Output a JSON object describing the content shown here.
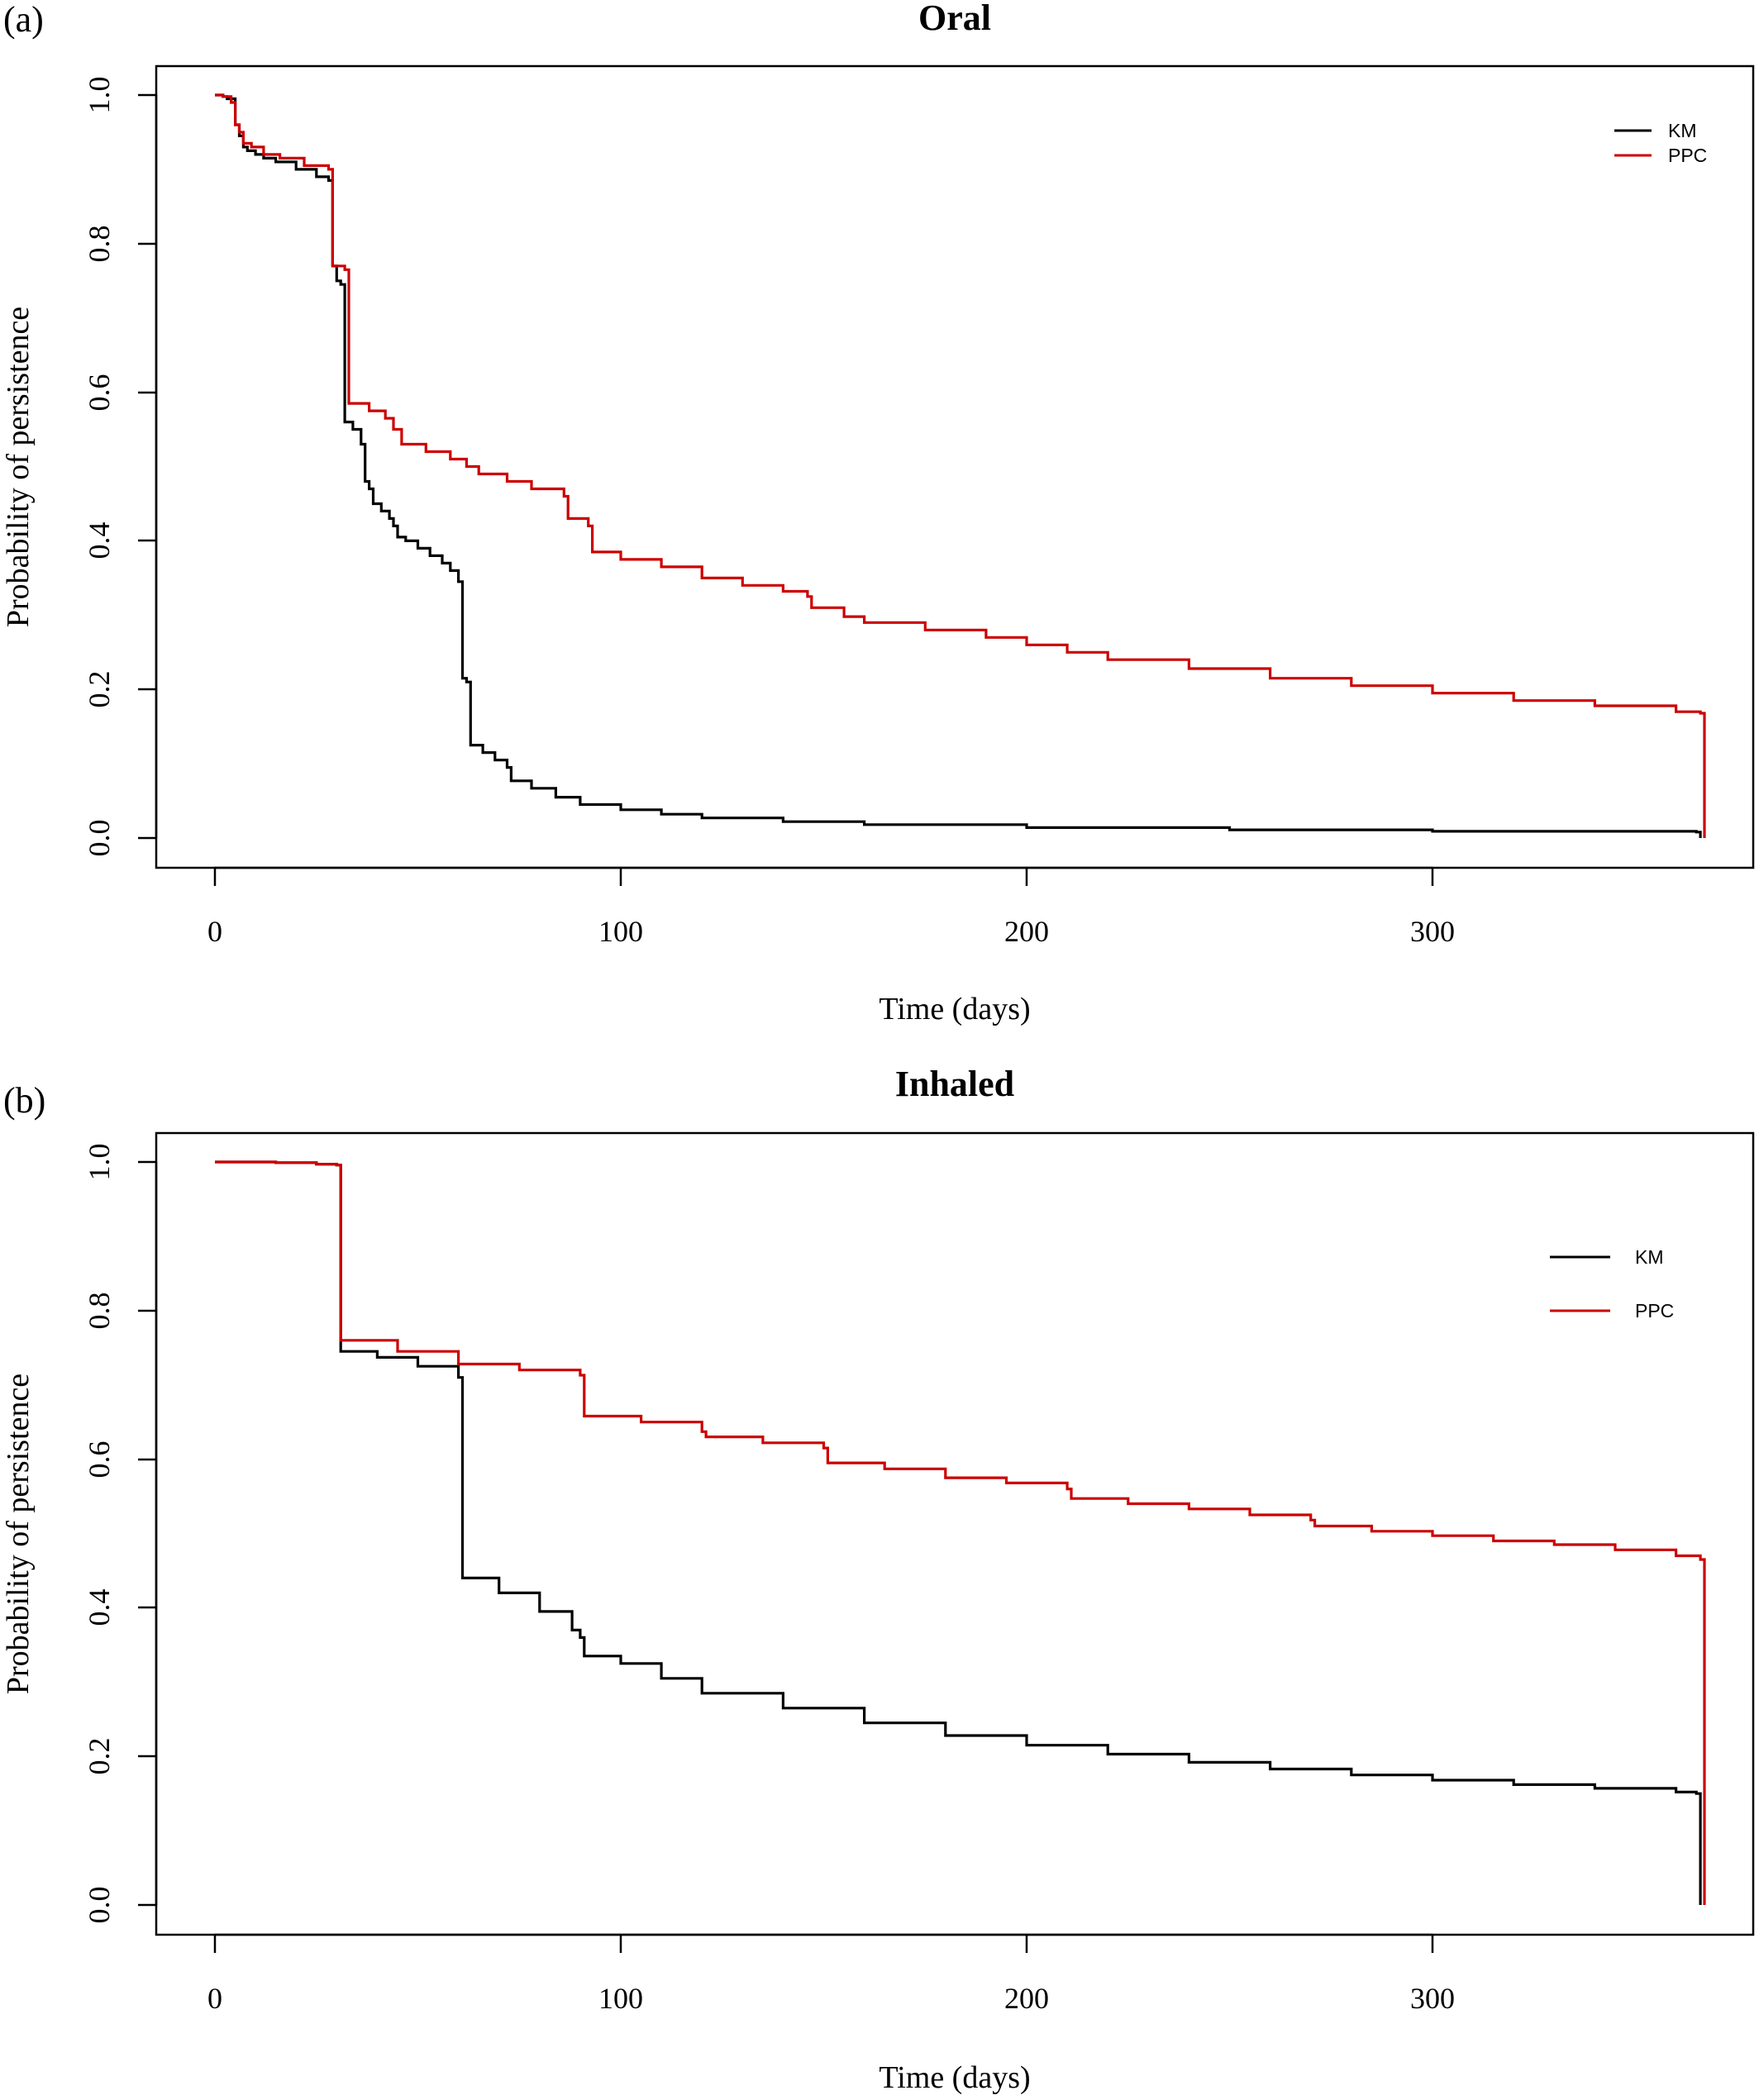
{
  "chart_data": [
    {
      "type": "line",
      "panel_label": "(a)",
      "title": "Oral",
      "xlabel": "Time (days)",
      "ylabel": "Probability of persistence",
      "xlim": [
        -15,
        380
      ],
      "ylim": [
        -0.04,
        1.04
      ],
      "xticks": [
        0,
        100,
        200,
        300
      ],
      "yticks": [
        0.0,
        0.2,
        0.4,
        0.6,
        0.8,
        1.0
      ],
      "xtick_labels": [
        "0",
        "100",
        "200",
        "300"
      ],
      "ytick_labels": [
        "0.0",
        "0.2",
        "0.4",
        "0.6",
        "0.8",
        "1.0"
      ],
      "legend_position": "top-right",
      "series": [
        {
          "name": "KM",
          "color": "#000000",
          "step": true,
          "points": [
            [
              0,
              1.0
            ],
            [
              2,
              0.998
            ],
            [
              3,
              0.995
            ],
            [
              5,
              0.96
            ],
            [
              6,
              0.945
            ],
            [
              7,
              0.93
            ],
            [
              8,
              0.925
            ],
            [
              10,
              0.92
            ],
            [
              12,
              0.915
            ],
            [
              15,
              0.91
            ],
            [
              20,
              0.9
            ],
            [
              25,
              0.89
            ],
            [
              28,
              0.885
            ],
            [
              29,
              0.77
            ],
            [
              30,
              0.75
            ],
            [
              31,
              0.745
            ],
            [
              32,
              0.56
            ],
            [
              34,
              0.55
            ],
            [
              36,
              0.53
            ],
            [
              37,
              0.48
            ],
            [
              38,
              0.47
            ],
            [
              39,
              0.45
            ],
            [
              41,
              0.44
            ],
            [
              43,
              0.43
            ],
            [
              44,
              0.42
            ],
            [
              45,
              0.405
            ],
            [
              47,
              0.4
            ],
            [
              50,
              0.39
            ],
            [
              53,
              0.38
            ],
            [
              56,
              0.37
            ],
            [
              58,
              0.36
            ],
            [
              60,
              0.345
            ],
            [
              61,
              0.215
            ],
            [
              62,
              0.21
            ],
            [
              63,
              0.125
            ],
            [
              66,
              0.115
            ],
            [
              69,
              0.105
            ],
            [
              72,
              0.095
            ],
            [
              73,
              0.077
            ],
            [
              78,
              0.067
            ],
            [
              84,
              0.055
            ],
            [
              90,
              0.045
            ],
            [
              100,
              0.038
            ],
            [
              110,
              0.032
            ],
            [
              120,
              0.027
            ],
            [
              140,
              0.022
            ],
            [
              160,
              0.018
            ],
            [
              200,
              0.014
            ],
            [
              250,
              0.011
            ],
            [
              300,
              0.009
            ],
            [
              365,
              0.008
            ],
            [
              366,
              0.0
            ]
          ]
        },
        {
          "name": "PPC",
          "color": "#cc0000",
          "step": true,
          "points": [
            [
              0,
              1.0
            ],
            [
              2,
              0.998
            ],
            [
              4,
              0.99
            ],
            [
              5,
              0.96
            ],
            [
              6,
              0.95
            ],
            [
              7,
              0.935
            ],
            [
              9,
              0.93
            ],
            [
              12,
              0.92
            ],
            [
              16,
              0.915
            ],
            [
              22,
              0.905
            ],
            [
              28,
              0.9
            ],
            [
              29,
              0.77
            ],
            [
              32,
              0.765
            ],
            [
              33,
              0.585
            ],
            [
              38,
              0.575
            ],
            [
              42,
              0.565
            ],
            [
              44,
              0.55
            ],
            [
              46,
              0.53
            ],
            [
              52,
              0.52
            ],
            [
              58,
              0.51
            ],
            [
              62,
              0.5
            ],
            [
              65,
              0.49
            ],
            [
              72,
              0.48
            ],
            [
              78,
              0.47
            ],
            [
              86,
              0.46
            ],
            [
              87,
              0.43
            ],
            [
              92,
              0.42
            ],
            [
              93,
              0.385
            ],
            [
              100,
              0.375
            ],
            [
              110,
              0.365
            ],
            [
              120,
              0.35
            ],
            [
              130,
              0.34
            ],
            [
              140,
              0.332
            ],
            [
              146,
              0.325
            ],
            [
              147,
              0.31
            ],
            [
              155,
              0.298
            ],
            [
              160,
              0.29
            ],
            [
              175,
              0.28
            ],
            [
              190,
              0.27
            ],
            [
              200,
              0.26
            ],
            [
              210,
              0.25
            ],
            [
              220,
              0.24
            ],
            [
              240,
              0.228
            ],
            [
              260,
              0.215
            ],
            [
              280,
              0.205
            ],
            [
              300,
              0.195
            ],
            [
              320,
              0.185
            ],
            [
              340,
              0.178
            ],
            [
              360,
              0.17
            ],
            [
              366,
              0.168
            ],
            [
              367,
              0.0
            ]
          ]
        }
      ]
    },
    {
      "type": "line",
      "panel_label": "(b)",
      "title": "Inhaled",
      "xlabel": "Time (days)",
      "ylabel": "Probability of persistence",
      "xlim": [
        -15,
        380
      ],
      "ylim": [
        -0.04,
        1.04
      ],
      "xticks": [
        0,
        100,
        200,
        300
      ],
      "yticks": [
        0.0,
        0.2,
        0.4,
        0.6,
        0.8,
        1.0
      ],
      "xtick_labels": [
        "0",
        "100",
        "200",
        "300"
      ],
      "ytick_labels": [
        "0.0",
        "0.2",
        "0.4",
        "0.6",
        "0.8",
        "1.0"
      ],
      "legend_position": "top-right",
      "series": [
        {
          "name": "KM",
          "color": "#000000",
          "step": true,
          "points": [
            [
              0,
              1.0
            ],
            [
              15,
              0.999
            ],
            [
              25,
              0.997
            ],
            [
              30,
              0.996
            ],
            [
              31,
              0.745
            ],
            [
              40,
              0.737
            ],
            [
              50,
              0.725
            ],
            [
              60,
              0.71
            ],
            [
              61,
              0.44
            ],
            [
              70,
              0.42
            ],
            [
              80,
              0.395
            ],
            [
              88,
              0.37
            ],
            [
              90,
              0.36
            ],
            [
              91,
              0.335
            ],
            [
              100,
              0.325
            ],
            [
              110,
              0.305
            ],
            [
              120,
              0.285
            ],
            [
              140,
              0.265
            ],
            [
              160,
              0.245
            ],
            [
              180,
              0.228
            ],
            [
              200,
              0.215
            ],
            [
              220,
              0.203
            ],
            [
              240,
              0.192
            ],
            [
              260,
              0.183
            ],
            [
              280,
              0.175
            ],
            [
              300,
              0.168
            ],
            [
              320,
              0.162
            ],
            [
              340,
              0.157
            ],
            [
              360,
              0.152
            ],
            [
              365,
              0.15
            ],
            [
              366,
              0.0
            ]
          ]
        },
        {
          "name": "PPC",
          "color": "#cc0000",
          "step": true,
          "points": [
            [
              0,
              1.0
            ],
            [
              15,
              0.999
            ],
            [
              25,
              0.997
            ],
            [
              30,
              0.996
            ],
            [
              31,
              0.76
            ],
            [
              45,
              0.745
            ],
            [
              60,
              0.728
            ],
            [
              75,
              0.72
            ],
            [
              90,
              0.713
            ],
            [
              91,
              0.658
            ],
            [
              105,
              0.65
            ],
            [
              120,
              0.637
            ],
            [
              121,
              0.63
            ],
            [
              135,
              0.622
            ],
            [
              150,
              0.615
            ],
            [
              151,
              0.595
            ],
            [
              165,
              0.587
            ],
            [
              180,
              0.575
            ],
            [
              195,
              0.568
            ],
            [
              210,
              0.56
            ],
            [
              211,
              0.547
            ],
            [
              225,
              0.54
            ],
            [
              240,
              0.533
            ],
            [
              255,
              0.525
            ],
            [
              270,
              0.518
            ],
            [
              271,
              0.51
            ],
            [
              285,
              0.503
            ],
            [
              300,
              0.497
            ],
            [
              315,
              0.49
            ],
            [
              330,
              0.485
            ],
            [
              345,
              0.478
            ],
            [
              360,
              0.47
            ],
            [
              366,
              0.465
            ],
            [
              367,
              0.0
            ]
          ]
        }
      ]
    }
  ]
}
